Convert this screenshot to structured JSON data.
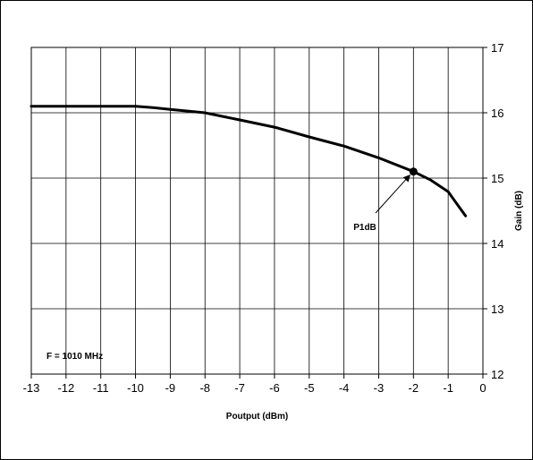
{
  "chart_data": {
    "type": "line",
    "xlabel": "Poutput (dBm)",
    "ylabel": "Gain (dB)",
    "xlim": [
      -13,
      0
    ],
    "ylim": [
      12,
      17
    ],
    "x_ticks": [
      -13,
      -12,
      -11,
      -10,
      -9,
      -8,
      -7,
      -6,
      -5,
      -4,
      -3,
      -2,
      -1,
      0
    ],
    "y_ticks": [
      12,
      13,
      14,
      15,
      16,
      17
    ],
    "grid": true,
    "y_axis_side": "right",
    "series": [
      {
        "color": "#000000",
        "points": [
          [
            -13.0,
            16.1
          ],
          [
            -12.0,
            16.1
          ],
          [
            -11.0,
            16.1
          ],
          [
            -10.0,
            16.1
          ],
          [
            -9.5,
            16.08
          ],
          [
            -9.0,
            16.05
          ],
          [
            -8.0,
            16.0
          ],
          [
            -7.0,
            15.89
          ],
          [
            -6.0,
            15.78
          ],
          [
            -5.0,
            15.63
          ],
          [
            -4.0,
            15.49
          ],
          [
            -3.0,
            15.31
          ],
          [
            -2.0,
            15.1
          ],
          [
            -1.5,
            14.97
          ],
          [
            -1.0,
            14.79
          ],
          [
            -0.5,
            14.42
          ]
        ]
      }
    ],
    "marker": {
      "x": -2.0,
      "y": 15.1
    },
    "annotations": [
      {
        "text": "P1dB"
      },
      {
        "text": "F = 1010 MHz"
      }
    ]
  }
}
